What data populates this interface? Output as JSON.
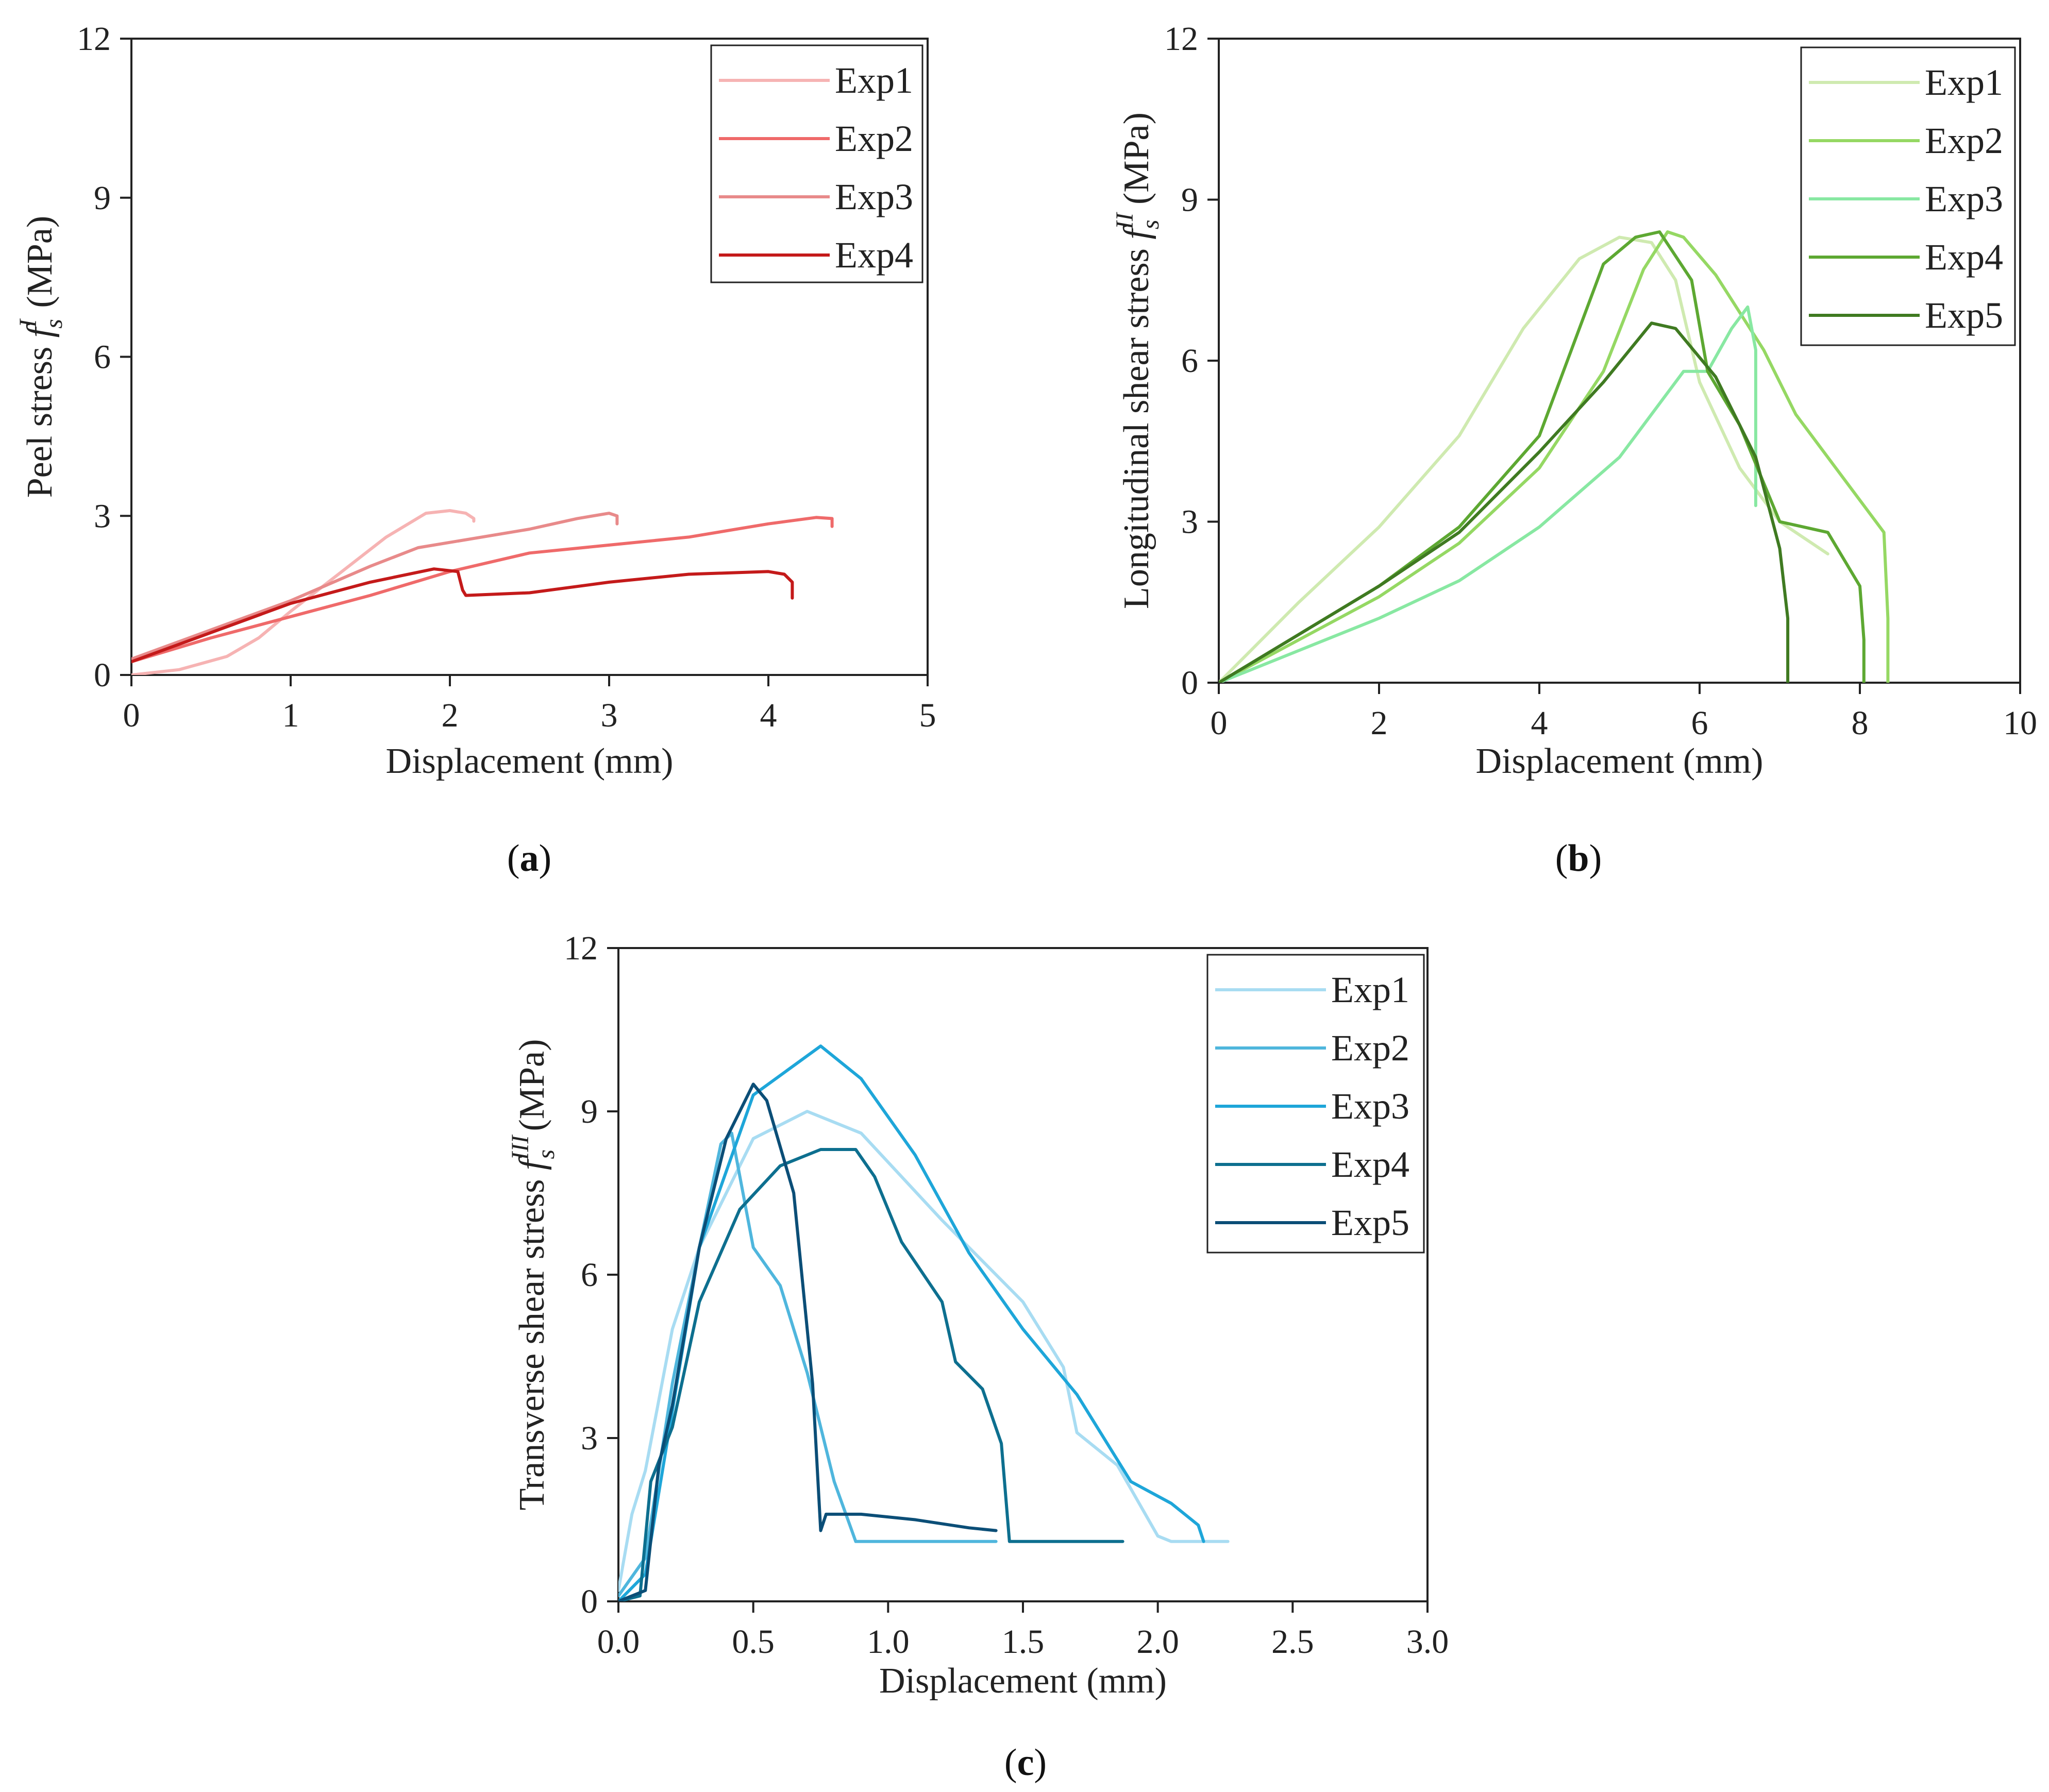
{
  "chart_data": [
    {
      "id": "a",
      "type": "line",
      "panel_label": "a",
      "xlabel": "Displacement (mm)",
      "ylabel_prefix": "Peel stress ",
      "ylabel_symbol": "f",
      "ylabel_sub": "s",
      "ylabel_sup": "I",
      "ylabel_suffix": " (MPa)",
      "xlim": [
        0,
        5
      ],
      "ylim": [
        0,
        12
      ],
      "xticks": [
        0,
        1,
        2,
        3,
        4,
        5
      ],
      "xtick_labels": [
        "0",
        "1",
        "2",
        "3",
        "4",
        "5"
      ],
      "yticks": [
        0,
        3,
        6,
        9,
        12
      ],
      "ytick_labels": [
        "0",
        "3",
        "6",
        "9",
        "12"
      ],
      "legend": "top-right",
      "series": [
        {
          "name": "Exp1",
          "color": "#f6b3b3",
          "x": [
            0,
            0.3,
            0.6,
            0.8,
            1.0,
            1.3,
            1.6,
            1.85,
            2.0,
            2.1,
            2.15,
            2.15
          ],
          "y": [
            0,
            0.1,
            0.35,
            0.7,
            1.2,
            1.9,
            2.6,
            3.05,
            3.1,
            3.05,
            2.95,
            2.9
          ]
        },
        {
          "name": "Exp2",
          "color": "#ef6a6a",
          "x": [
            0,
            0.5,
            1.0,
            1.5,
            2.0,
            2.5,
            3.0,
            3.5,
            4.0,
            4.3,
            4.4,
            4.4
          ],
          "y": [
            0.25,
            0.7,
            1.1,
            1.5,
            1.95,
            2.3,
            2.45,
            2.6,
            2.85,
            2.97,
            2.95,
            2.8
          ]
        },
        {
          "name": "Exp3",
          "color": "#e88a8a",
          "x": [
            0,
            0.5,
            1.0,
            1.5,
            1.8,
            2.0,
            2.5,
            2.8,
            3.0,
            3.05,
            3.05
          ],
          "y": [
            0.3,
            0.85,
            1.4,
            2.05,
            2.4,
            2.5,
            2.75,
            2.95,
            3.05,
            3.0,
            2.85
          ]
        },
        {
          "name": "Exp4",
          "color": "#c41a1a",
          "x": [
            0,
            0.5,
            1.0,
            1.5,
            1.9,
            2.05,
            2.08,
            2.1,
            2.5,
            3.0,
            3.5,
            4.0,
            4.1,
            4.15,
            4.15
          ],
          "y": [
            0.25,
            0.8,
            1.35,
            1.75,
            2.0,
            1.95,
            1.6,
            1.5,
            1.55,
            1.75,
            1.9,
            1.95,
            1.9,
            1.75,
            1.45
          ]
        }
      ]
    },
    {
      "id": "b",
      "type": "line",
      "panel_label": "b",
      "xlabel": "Displacement (mm)",
      "ylabel_prefix": "Longitudinal shear stress ",
      "ylabel_symbol": "f",
      "ylabel_sub": "s",
      "ylabel_sup": "II",
      "ylabel_suffix": " (MPa)",
      "xlim": [
        0,
        10
      ],
      "ylim": [
        0,
        12
      ],
      "xticks": [
        0,
        2,
        4,
        6,
        8,
        10
      ],
      "xtick_labels": [
        "0",
        "2",
        "4",
        "6",
        "8",
        "10"
      ],
      "yticks": [
        0,
        3,
        6,
        9,
        12
      ],
      "ytick_labels": [
        "0",
        "3",
        "6",
        "9",
        "12"
      ],
      "legend": "top-right",
      "series": [
        {
          "name": "Exp1",
          "color": "#cfeab0",
          "x": [
            0,
            1,
            2,
            3,
            3.8,
            4.5,
            5.0,
            5.4,
            5.7,
            6.0,
            6.5,
            7.0,
            7.6
          ],
          "y": [
            0,
            1.5,
            2.9,
            4.6,
            6.6,
            7.9,
            8.3,
            8.2,
            7.5,
            5.6,
            4.0,
            3.0,
            2.4
          ]
        },
        {
          "name": "Exp2",
          "color": "#95d863",
          "x": [
            0,
            1,
            2,
            3,
            4,
            4.8,
            5.3,
            5.6,
            5.8,
            6.2,
            6.8,
            7.2,
            7.8,
            8.3,
            8.35,
            8.35
          ],
          "y": [
            0,
            0.8,
            1.6,
            2.6,
            4.0,
            5.8,
            7.7,
            8.4,
            8.3,
            7.6,
            6.2,
            5.0,
            3.8,
            2.8,
            1.2,
            0
          ]
        },
        {
          "name": "Exp3",
          "color": "#88e8a2",
          "x": [
            0,
            1,
            2,
            3,
            4,
            5,
            5.8,
            6.1,
            6.4,
            6.6,
            6.7,
            6.7
          ],
          "y": [
            0,
            0.6,
            1.2,
            1.9,
            2.9,
            4.2,
            5.8,
            5.8,
            6.6,
            7.0,
            6.2,
            3.3
          ]
        },
        {
          "name": "Exp4",
          "color": "#5da832",
          "x": [
            0,
            1,
            2,
            3,
            4,
            4.8,
            5.2,
            5.5,
            5.9,
            6.1,
            6.5,
            7.0,
            7.6,
            8.0,
            8.05,
            8.05
          ],
          "y": [
            0,
            0.9,
            1.8,
            2.9,
            4.6,
            7.8,
            8.3,
            8.4,
            7.5,
            5.8,
            4.8,
            3.0,
            2.8,
            1.8,
            0.8,
            0
          ]
        },
        {
          "name": "Exp5",
          "color": "#3f7a21",
          "x": [
            0,
            1,
            2,
            3,
            4,
            4.8,
            5.4,
            5.7,
            6.2,
            6.7,
            7.0,
            7.1,
            7.1
          ],
          "y": [
            0,
            0.9,
            1.8,
            2.8,
            4.3,
            5.6,
            6.7,
            6.6,
            5.7,
            4.2,
            2.5,
            1.2,
            0
          ]
        }
      ]
    },
    {
      "id": "c",
      "type": "line",
      "panel_label": "c",
      "xlabel": "Displacement (mm)",
      "ylabel_prefix": "Transverse shear stress ",
      "ylabel_symbol": "f",
      "ylabel_sub": "s",
      "ylabel_sup": "III",
      "ylabel_suffix": " (MPa)",
      "xlim": [
        0,
        3
      ],
      "ylim": [
        0,
        12
      ],
      "xticks": [
        0,
        0.5,
        1.0,
        1.5,
        2.0,
        2.5,
        3.0
      ],
      "xtick_labels": [
        "0.0",
        "0.5",
        "1.0",
        "1.5",
        "2.0",
        "2.5",
        "3.0"
      ],
      "yticks": [
        0,
        3,
        6,
        9,
        12
      ],
      "ytick_labels": [
        "0",
        "3",
        "6",
        "9",
        "12"
      ],
      "legend": "top-right",
      "series": [
        {
          "name": "Exp1",
          "color": "#a8dcf2",
          "x": [
            0,
            0.05,
            0.1,
            0.2,
            0.3,
            0.5,
            0.7,
            0.9,
            1.2,
            1.5,
            1.65,
            1.7,
            1.85,
            2.0,
            2.05,
            2.26
          ],
          "y": [
            0.2,
            1.6,
            2.4,
            5.0,
            6.5,
            8.5,
            9.0,
            8.6,
            7.0,
            5.5,
            4.3,
            3.1,
            2.5,
            1.2,
            1.1,
            1.1
          ]
        },
        {
          "name": "Exp2",
          "color": "#4fb6dd",
          "x": [
            0,
            0.1,
            0.2,
            0.3,
            0.38,
            0.42,
            0.5,
            0.6,
            0.7,
            0.8,
            0.88,
            1.0,
            1.4
          ],
          "y": [
            0.1,
            0.8,
            4.0,
            6.5,
            8.4,
            8.6,
            6.5,
            5.8,
            4.2,
            2.2,
            1.1,
            1.1,
            1.1
          ]
        },
        {
          "name": "Exp3",
          "color": "#1ea6d9",
          "x": [
            0,
            0.1,
            0.2,
            0.3,
            0.5,
            0.75,
            0.9,
            1.1,
            1.3,
            1.5,
            1.7,
            1.9,
            2.05,
            2.15,
            2.17
          ],
          "y": [
            0,
            0.5,
            3.5,
            6.5,
            9.3,
            10.2,
            9.6,
            8.2,
            6.4,
            5.0,
            3.8,
            2.2,
            1.8,
            1.4,
            1.1
          ]
        },
        {
          "name": "Exp4",
          "color": "#0d6f8f",
          "x": [
            0,
            0.08,
            0.12,
            0.2,
            0.3,
            0.45,
            0.6,
            0.75,
            0.88,
            0.95,
            1.05,
            1.2,
            1.25,
            1.35,
            1.42,
            1.45,
            1.5,
            1.87
          ],
          "y": [
            0,
            0.1,
            2.2,
            3.2,
            5.5,
            7.2,
            8.0,
            8.3,
            8.3,
            7.8,
            6.6,
            5.5,
            4.4,
            3.9,
            2.9,
            1.1,
            1.1,
            1.1
          ]
        },
        {
          "name": "Exp5",
          "color": "#0b4e77",
          "x": [
            0,
            0.1,
            0.15,
            0.2,
            0.3,
            0.4,
            0.5,
            0.55,
            0.65,
            0.72,
            0.75,
            0.77,
            0.9,
            1.1,
            1.3,
            1.4
          ],
          "y": [
            0,
            0.2,
            2.5,
            3.6,
            6.5,
            8.5,
            9.5,
            9.2,
            7.5,
            4.0,
            1.3,
            1.6,
            1.6,
            1.5,
            1.35,
            1.3
          ]
        }
      ]
    }
  ]
}
